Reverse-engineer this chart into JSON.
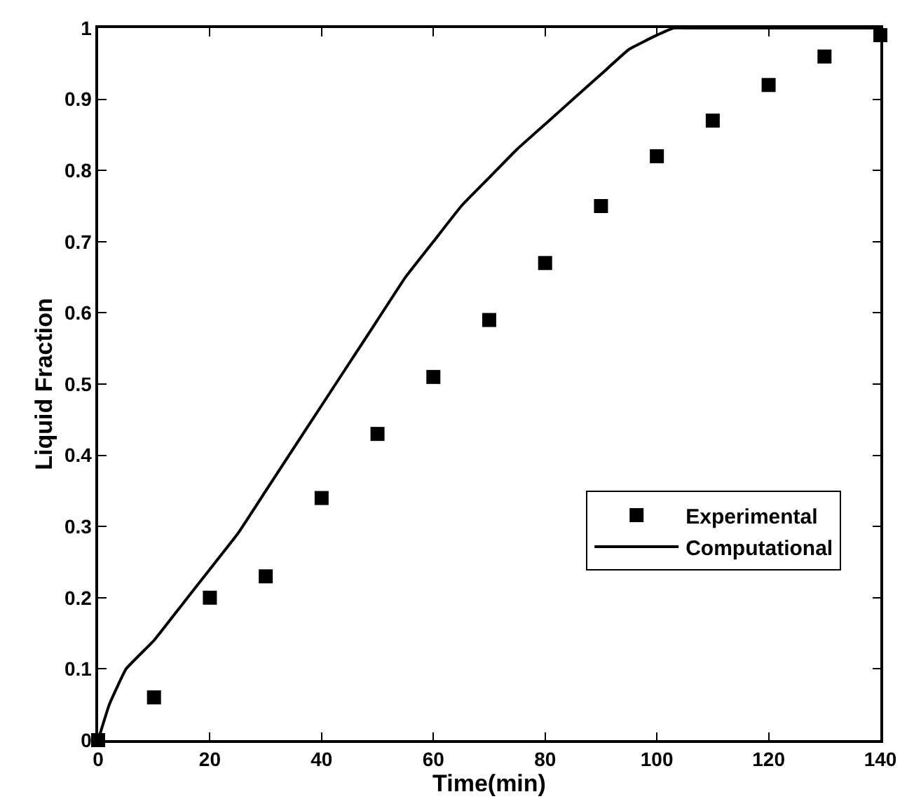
{
  "chart_data": {
    "type": "scatter",
    "xlabel": "Time(min)",
    "ylabel": "Liquid Fraction",
    "xlim": [
      0,
      140
    ],
    "xticks": [
      0,
      20,
      40,
      60,
      80,
      100,
      120,
      140
    ],
    "ylim": [
      0,
      1
    ],
    "yticks": [
      0,
      0.1,
      0.2,
      0.3,
      0.4,
      0.5,
      0.6,
      0.7,
      0.8,
      0.9,
      1
    ],
    "legend": "right",
    "series": [
      {
        "name": "Experimental",
        "marker": "square",
        "color": "#000000",
        "x": [
          0,
          10,
          20,
          30,
          40,
          50,
          60,
          70,
          80,
          90,
          100,
          110,
          120,
          130,
          140
        ],
        "values": [
          0,
          0.06,
          0.2,
          0.23,
          0.34,
          0.43,
          0.51,
          0.59,
          0.67,
          0.75,
          0.82,
          0.87,
          0.92,
          0.96,
          0.99
        ]
      },
      {
        "name": "Computational",
        "type": "line",
        "line_style": "solid",
        "color": "#000000",
        "x": [
          0,
          2,
          5,
          10,
          15,
          20,
          25,
          30,
          35,
          40,
          45,
          50,
          55,
          60,
          65,
          70,
          75,
          80,
          85,
          90,
          95,
          100,
          103,
          106,
          120,
          140
        ],
        "values": [
          0,
          0.05,
          0.1,
          0.14,
          0.19,
          0.24,
          0.29,
          0.35,
          0.41,
          0.47,
          0.53,
          0.59,
          0.65,
          0.7,
          0.75,
          0.79,
          0.83,
          0.865,
          0.9,
          0.935,
          0.97,
          0.99,
          1.0,
          1.0,
          1.0,
          1.0
        ]
      }
    ]
  }
}
